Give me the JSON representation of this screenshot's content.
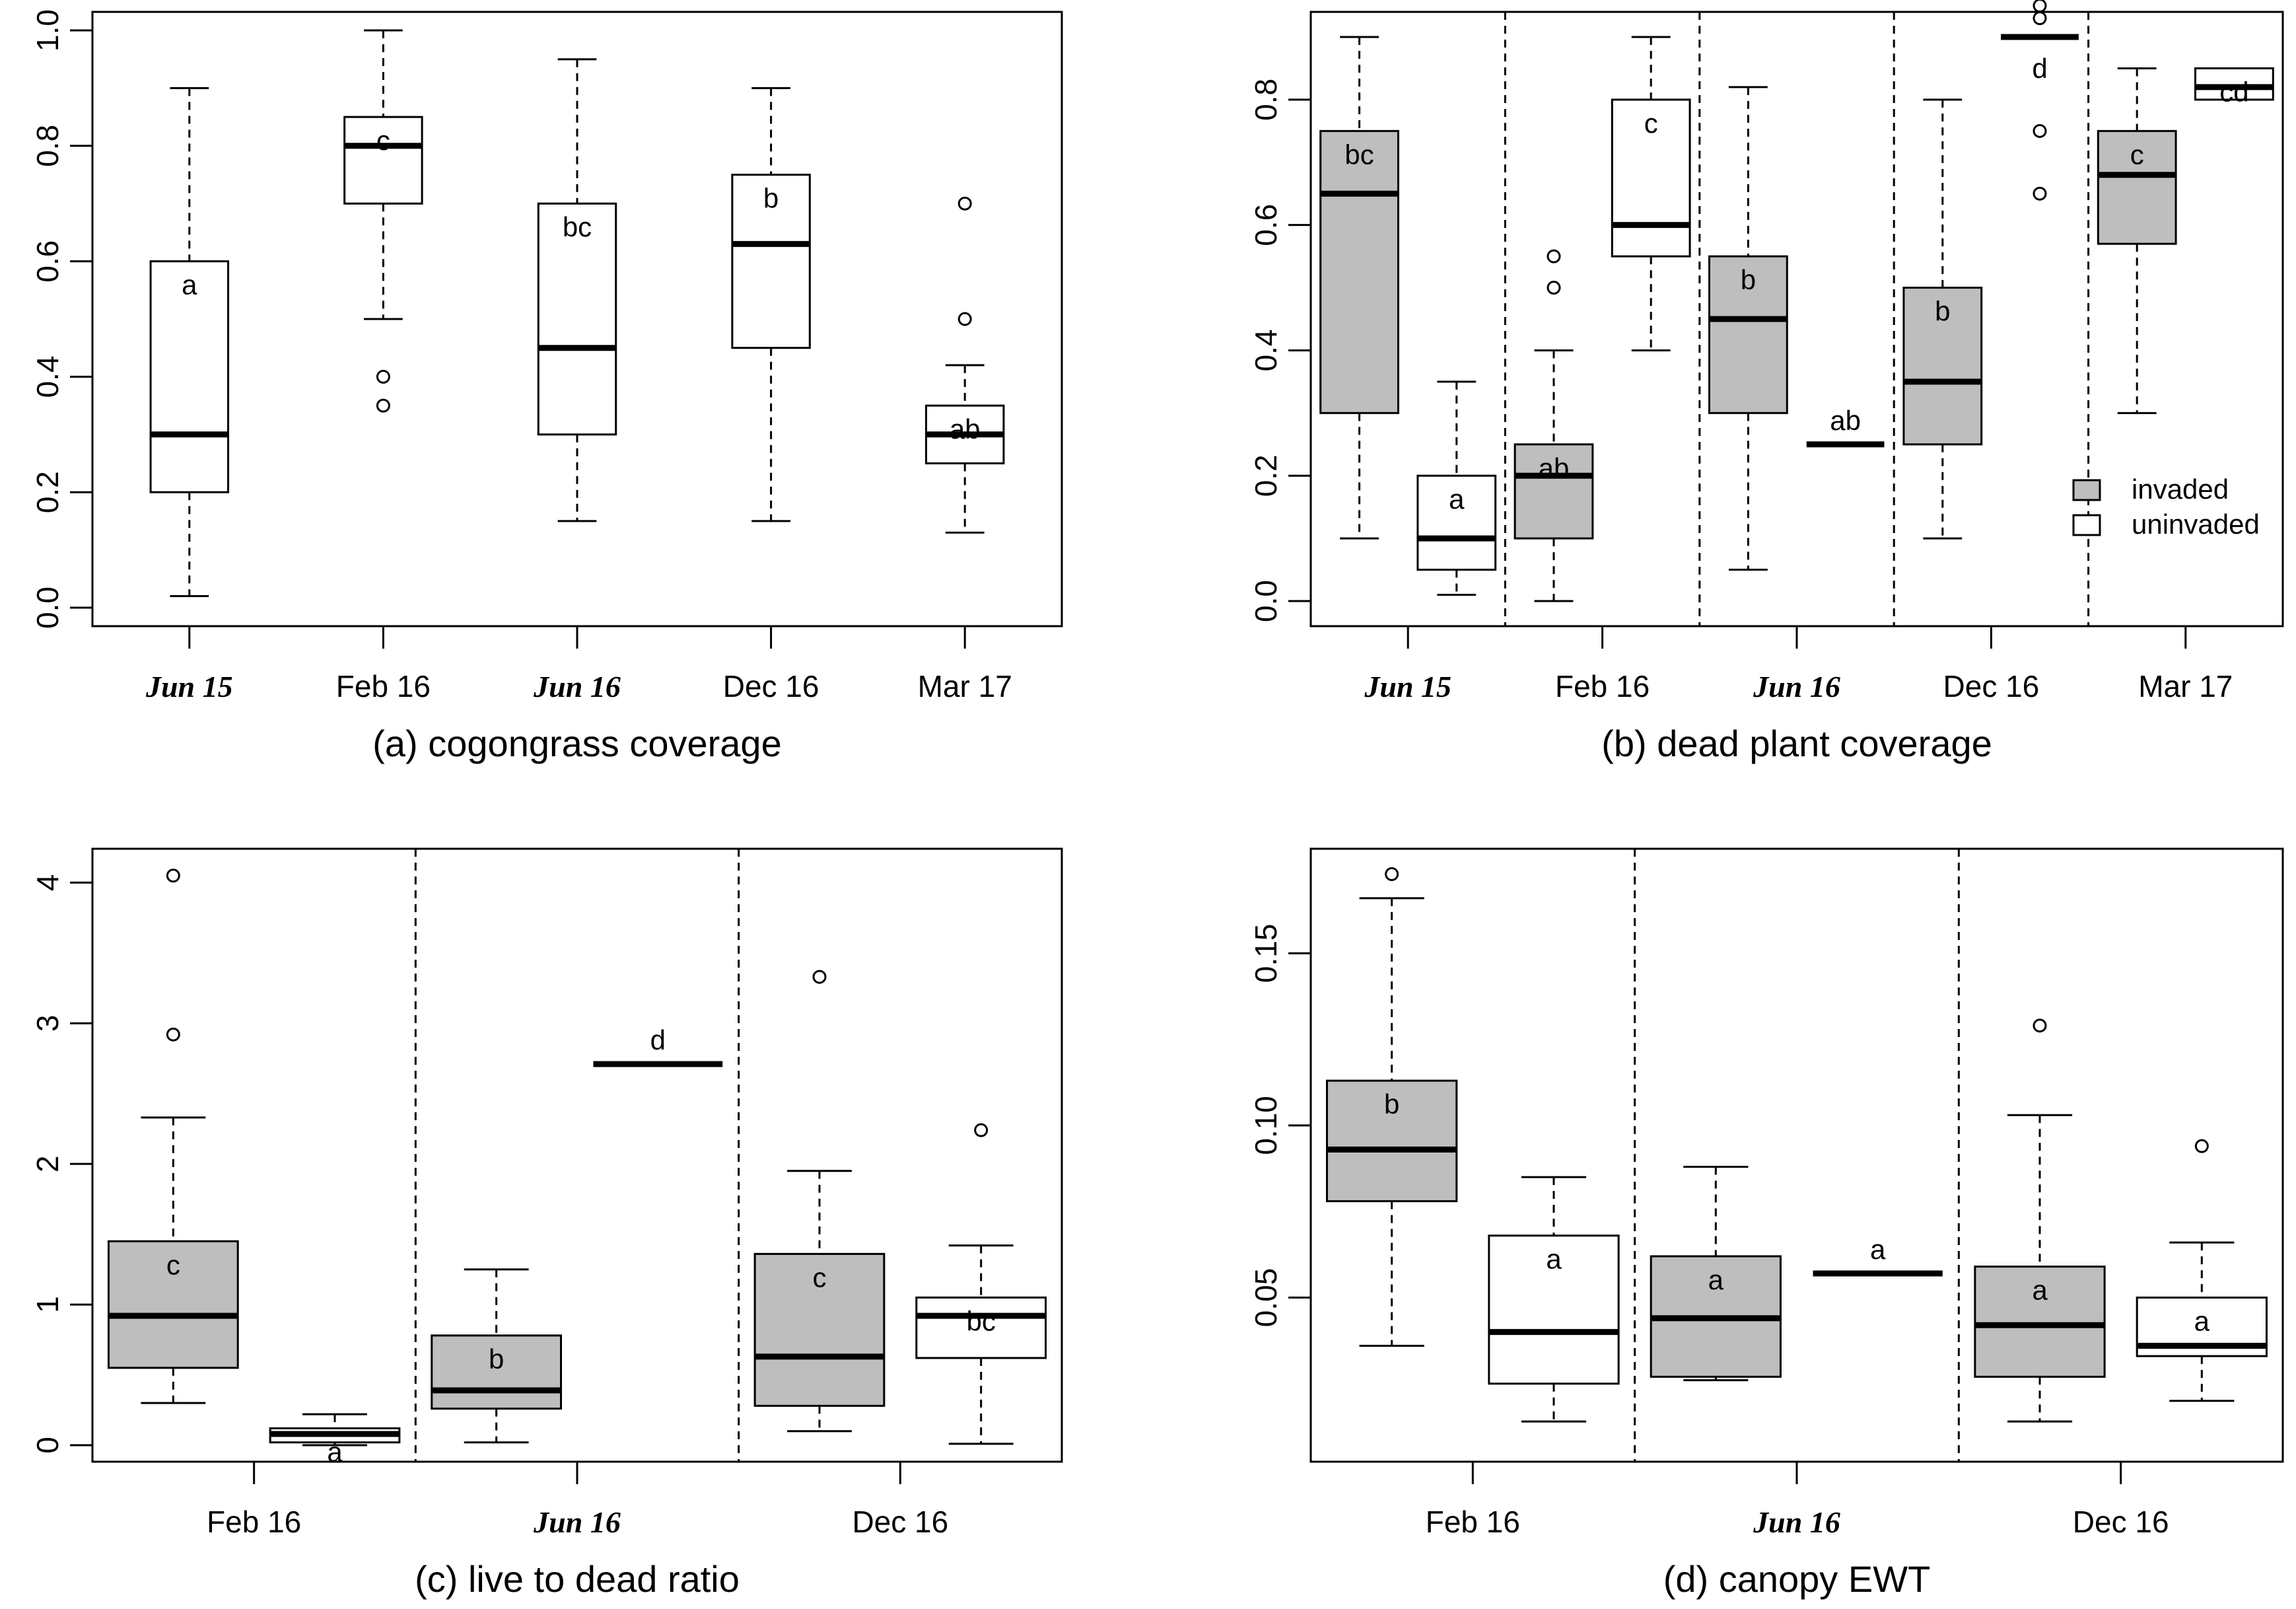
{
  "colors": {
    "invaded": "#bebebe",
    "uninvaded": "#ffffff"
  },
  "legend": {
    "invaded": "invaded",
    "uninvaded": "uninvaded",
    "position": "right"
  },
  "chart_data": [
    {
      "id": "a",
      "type": "box",
      "title": "(a) cogongrass coverage",
      "ylim": [
        0,
        1
      ],
      "yticks": [
        0.0,
        0.2,
        0.4,
        0.6,
        0.8,
        1.0
      ],
      "yticklabels": [
        "0.0",
        "0.2",
        "0.4",
        "0.6",
        "0.8",
        "1.0"
      ],
      "categories": [
        "Jun 15",
        "Feb 16",
        "Jun 16",
        "Dec 16",
        "Mar 17"
      ],
      "bold_categories": [
        "Jun 15",
        "Jun 16"
      ],
      "boxes": [
        {
          "x": 1,
          "fill": "uninvaded",
          "whislo": 0.02,
          "q1": 0.2,
          "med": 0.3,
          "q3": 0.6,
          "whishi": 0.9,
          "fliers": [],
          "label": "a"
        },
        {
          "x": 2,
          "fill": "uninvaded",
          "whislo": 0.5,
          "q1": 0.7,
          "med": 0.8,
          "q3": 0.85,
          "whishi": 1.0,
          "fliers": [
            0.4,
            0.35
          ],
          "label": "c"
        },
        {
          "x": 3,
          "fill": "uninvaded",
          "whislo": 0.15,
          "q1": 0.3,
          "med": 0.45,
          "q3": 0.7,
          "whishi": 0.95,
          "fliers": [],
          "label": "bc"
        },
        {
          "x": 4,
          "fill": "uninvaded",
          "whislo": 0.15,
          "q1": 0.45,
          "med": 0.63,
          "q3": 0.75,
          "whishi": 0.9,
          "fliers": [],
          "label": "b"
        },
        {
          "x": 5,
          "fill": "uninvaded",
          "whislo": 0.13,
          "q1": 0.25,
          "med": 0.3,
          "q3": 0.35,
          "whishi": 0.42,
          "fliers": [
            0.5,
            0.7
          ],
          "label": "ab"
        }
      ],
      "separators": []
    },
    {
      "id": "b",
      "type": "box",
      "title": "(b) dead plant coverage",
      "ylim": [
        0,
        0.9
      ],
      "yticks": [
        0.0,
        0.2,
        0.4,
        0.6,
        0.8
      ],
      "yticklabels": [
        "0.0",
        "0.2",
        "0.4",
        "0.6",
        "0.8"
      ],
      "categories": [
        "Jun 15",
        "Feb 16",
        "Jun 16",
        "Dec 16",
        "Mar 17"
      ],
      "bold_categories": [
        "Jun 15",
        "Jun 16"
      ],
      "boxes": [
        {
          "x": 0.75,
          "fill": "invaded",
          "whislo": 0.1,
          "q1": 0.3,
          "med": 0.65,
          "q3": 0.75,
          "whishi": 0.9,
          "fliers": [],
          "label": "bc"
        },
        {
          "x": 1.25,
          "fill": "uninvaded",
          "whislo": 0.01,
          "q1": 0.05,
          "med": 0.1,
          "q3": 0.2,
          "whishi": 0.35,
          "fliers": [],
          "label": "a"
        },
        {
          "x": 1.75,
          "fill": "invaded",
          "whislo": 0.0,
          "q1": 0.1,
          "med": 0.2,
          "q3": 0.25,
          "whishi": 0.4,
          "fliers": [
            0.5,
            0.55
          ],
          "label": "ab"
        },
        {
          "x": 2.25,
          "fill": "uninvaded",
          "whislo": 0.4,
          "q1": 0.55,
          "med": 0.6,
          "q3": 0.8,
          "whishi": 0.9,
          "fliers": [],
          "label": "c"
        },
        {
          "x": 2.75,
          "fill": "invaded",
          "whislo": 0.05,
          "q1": 0.3,
          "med": 0.45,
          "q3": 0.55,
          "whishi": 0.82,
          "fliers": [],
          "label": "b"
        },
        {
          "x": 3.25,
          "fill": "uninvaded",
          "whislo": 0.25,
          "q1": 0.25,
          "med": 0.25,
          "q3": 0.25,
          "whishi": 0.25,
          "fliers": [],
          "label": "ab"
        },
        {
          "x": 3.75,
          "fill": "invaded",
          "whislo": 0.1,
          "q1": 0.25,
          "med": 0.35,
          "q3": 0.5,
          "whishi": 0.8,
          "fliers": [],
          "label": "b"
        },
        {
          "x": 4.25,
          "fill": "uninvaded",
          "whislo": 0.9,
          "q1": 0.9,
          "med": 0.9,
          "q3": 0.9,
          "whishi": 0.9,
          "fliers": [
            0.65,
            0.75,
            0.93,
            0.95
          ],
          "label": "d",
          "label_below": true
        },
        {
          "x": 4.75,
          "fill": "invaded",
          "whislo": 0.3,
          "q1": 0.57,
          "med": 0.68,
          "q3": 0.75,
          "whishi": 0.85,
          "fliers": [],
          "label": "c"
        },
        {
          "x": 5.25,
          "fill": "uninvaded",
          "whislo": 0.8,
          "q1": 0.8,
          "med": 0.82,
          "q3": 0.85,
          "whishi": 0.85,
          "fliers": [],
          "label": "cd"
        }
      ],
      "separators": [
        1.5,
        2.5,
        3.5,
        4.5
      ],
      "legend": true
    },
    {
      "id": "c",
      "type": "box",
      "title": "(c) live to dead ratio",
      "ylim": [
        0,
        4.1
      ],
      "yticks": [
        0,
        1,
        2,
        3,
        4
      ],
      "yticklabels": [
        "0",
        "1",
        "2",
        "3",
        "4"
      ],
      "categories": [
        "Feb 16",
        "Jun 16",
        "Dec 16"
      ],
      "bold_categories": [
        "Jun 16"
      ],
      "boxes": [
        {
          "x": 0.75,
          "fill": "invaded",
          "whislo": 0.3,
          "q1": 0.55,
          "med": 0.92,
          "q3": 1.45,
          "whishi": 2.33,
          "fliers": [
            2.92,
            4.05
          ],
          "label": "c"
        },
        {
          "x": 1.25,
          "fill": "uninvaded",
          "whislo": 0.0,
          "q1": 0.02,
          "med": 0.08,
          "q3": 0.12,
          "whishi": 0.22,
          "fliers": [],
          "label": "a"
        },
        {
          "x": 1.75,
          "fill": "invaded",
          "whislo": 0.02,
          "q1": 0.26,
          "med": 0.39,
          "q3": 0.78,
          "whishi": 1.25,
          "fliers": [],
          "label": "b"
        },
        {
          "x": 2.25,
          "fill": "uninvaded",
          "whislo": 2.71,
          "q1": 2.71,
          "med": 2.71,
          "q3": 2.71,
          "whishi": 2.71,
          "fliers": [],
          "label": "d"
        },
        {
          "x": 2.75,
          "fill": "invaded",
          "whislo": 0.1,
          "q1": 0.28,
          "med": 0.63,
          "q3": 1.36,
          "whishi": 1.95,
          "fliers": [
            3.33
          ],
          "label": "c"
        },
        {
          "x": 3.25,
          "fill": "uninvaded",
          "whislo": 0.01,
          "q1": 0.62,
          "med": 0.92,
          "q3": 1.05,
          "whishi": 1.42,
          "fliers": [
            2.24
          ],
          "label": "bc"
        }
      ],
      "separators": [
        1.5,
        2.5
      ]
    },
    {
      "id": "d",
      "type": "box",
      "title": "(d) canopy EWT",
      "ylim": [
        0.01,
        0.175
      ],
      "yticks": [
        0.05,
        0.1,
        0.15
      ],
      "yticklabels": [
        "0.05",
        "0.10",
        "0.15"
      ],
      "categories": [
        "Feb 16",
        "Jun 16",
        "Dec 16"
      ],
      "bold_categories": [
        "Jun 16"
      ],
      "boxes": [
        {
          "x": 0.75,
          "fill": "invaded",
          "whislo": 0.036,
          "q1": 0.078,
          "med": 0.093,
          "q3": 0.113,
          "whishi": 0.166,
          "fliers": [
            0.173
          ],
          "label": "b"
        },
        {
          "x": 1.25,
          "fill": "uninvaded",
          "whislo": 0.014,
          "q1": 0.025,
          "med": 0.04,
          "q3": 0.068,
          "whishi": 0.085,
          "fliers": [],
          "label": "a"
        },
        {
          "x": 1.75,
          "fill": "invaded",
          "whislo": 0.026,
          "q1": 0.027,
          "med": 0.044,
          "q3": 0.062,
          "whishi": 0.088,
          "fliers": [],
          "label": "a"
        },
        {
          "x": 2.25,
          "fill": "uninvaded",
          "whislo": 0.057,
          "q1": 0.057,
          "med": 0.057,
          "q3": 0.057,
          "whishi": 0.057,
          "fliers": [],
          "label": "a"
        },
        {
          "x": 2.75,
          "fill": "invaded",
          "whislo": 0.014,
          "q1": 0.027,
          "med": 0.042,
          "q3": 0.059,
          "whishi": 0.103,
          "fliers": [
            0.129
          ],
          "label": "a"
        },
        {
          "x": 3.25,
          "fill": "uninvaded",
          "whislo": 0.02,
          "q1": 0.033,
          "med": 0.036,
          "q3": 0.05,
          "whishi": 0.066,
          "fliers": [
            0.094
          ],
          "label": "a"
        }
      ],
      "separators": [
        1.5,
        2.5
      ]
    }
  ]
}
